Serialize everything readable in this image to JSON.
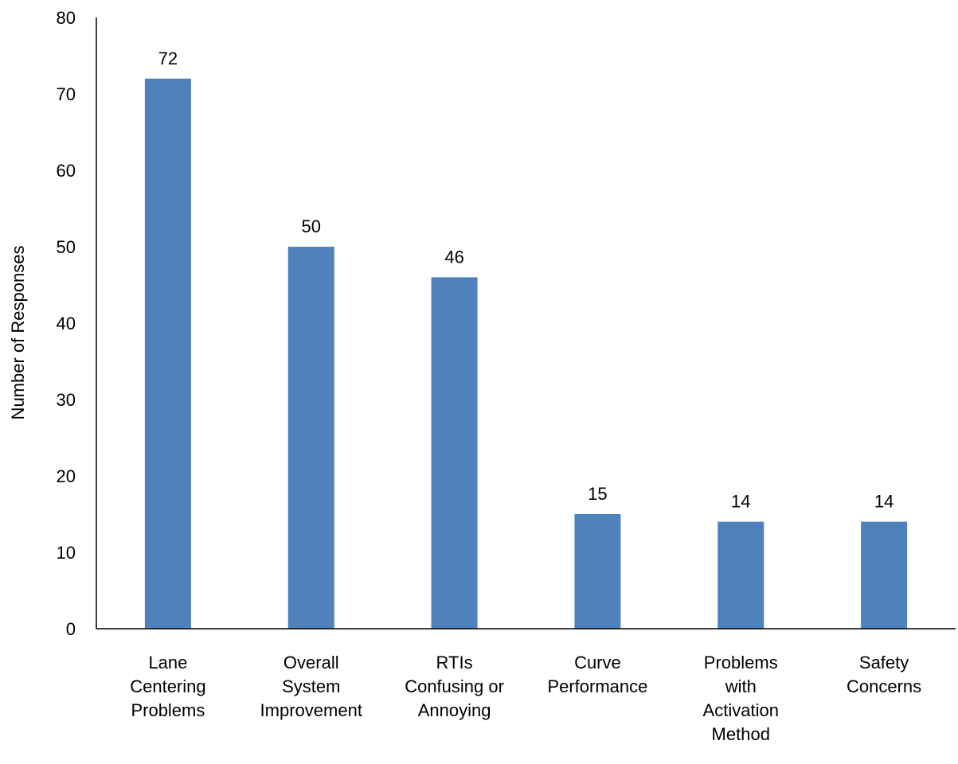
{
  "chart_data": {
    "type": "bar",
    "title": "",
    "xlabel": "",
    "ylabel": "Number of Responses",
    "ylim": [
      0,
      80
    ],
    "yticks": [
      0,
      10,
      20,
      30,
      40,
      50,
      60,
      70,
      80
    ],
    "grid": false,
    "legend": "none",
    "bar_color": "#4F81BD",
    "categories": [
      [
        "Lane",
        "Centering",
        "Problems"
      ],
      [
        "Overall",
        "System",
        "Improvement"
      ],
      [
        "RTIs",
        "Confusing or",
        "Annoying"
      ],
      [
        "Curve",
        "Performance"
      ],
      [
        "Problems",
        "with",
        "Activation",
        "Method"
      ],
      [
        "Safety",
        "Concerns"
      ]
    ],
    "values": [
      72,
      50,
      46,
      15,
      14,
      14
    ]
  }
}
